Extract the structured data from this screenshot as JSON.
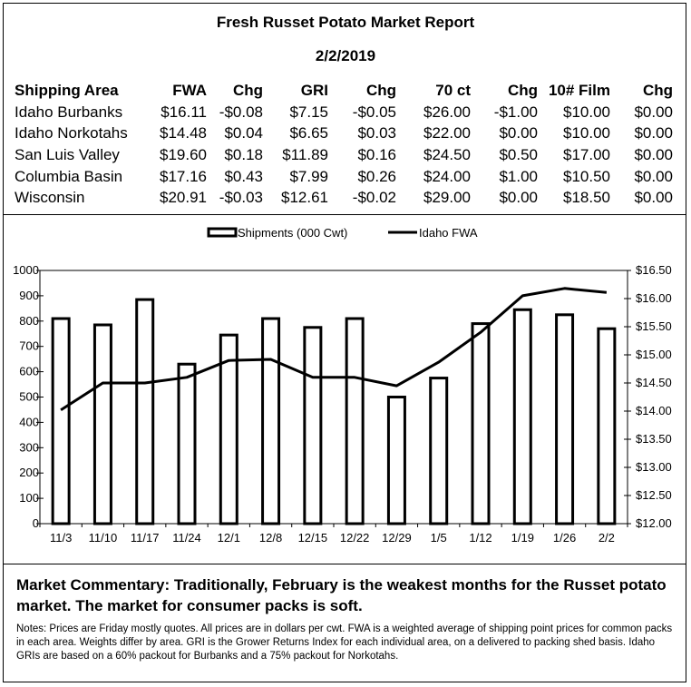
{
  "report": {
    "title": "Fresh Russet Potato Market Report",
    "date": "2/2/2019"
  },
  "price_table": {
    "headers": [
      "Shipping Area",
      "FWA",
      "Chg",
      "GRI",
      "Chg",
      "70 ct",
      "Chg",
      "10# Film",
      "Chg"
    ],
    "rows": [
      [
        "Idaho Burbanks",
        "$16.11",
        "-$0.08",
        "$7.15",
        "-$0.05",
        "$26.00",
        "-$1.00",
        "$10.00",
        "$0.00"
      ],
      [
        "Idaho Norkotahs",
        "$14.48",
        "$0.04",
        "$6.65",
        "$0.03",
        "$22.00",
        "$0.00",
        "$10.00",
        "$0.00"
      ],
      [
        "San Luis Valley",
        "$19.60",
        "$0.18",
        "$11.89",
        "$0.16",
        "$24.50",
        "$0.50",
        "$17.00",
        "$0.00"
      ],
      [
        "Columbia Basin",
        "$17.16",
        "$0.43",
        "$7.99",
        "$0.26",
        "$24.00",
        "$1.00",
        "$10.50",
        "$0.00"
      ],
      [
        "Wisconsin",
        "$20.91",
        "-$0.03",
        "$12.61",
        "-$0.02",
        "$29.00",
        "$0.00",
        "$18.50",
        "$0.00"
      ]
    ]
  },
  "chart_data": {
    "type": "bar",
    "categories": [
      "11/3",
      "11/10",
      "11/17",
      "11/24",
      "12/1",
      "12/8",
      "12/15",
      "12/22",
      "12/29",
      "1/5",
      "1/12",
      "1/19",
      "1/26",
      "2/2"
    ],
    "series": [
      {
        "name": "Shipments (000 Cwt)",
        "type": "bar",
        "axis": "left",
        "values": [
          810,
          785,
          885,
          630,
          745,
          810,
          775,
          810,
          500,
          575,
          790,
          845,
          825,
          770
        ]
      },
      {
        "name": "Idaho FWA",
        "type": "line",
        "axis": "right",
        "values": [
          14.02,
          14.5,
          14.5,
          14.6,
          14.9,
          14.92,
          14.6,
          14.6,
          14.45,
          14.87,
          15.4,
          16.05,
          16.18,
          16.11
        ]
      }
    ],
    "y_left": {
      "range": [
        0,
        1000
      ],
      "ticks": [
        "0",
        "100",
        "200",
        "300",
        "400",
        "500",
        "600",
        "700",
        "800",
        "900",
        "1000"
      ]
    },
    "y_right": {
      "range": [
        12.0,
        16.5
      ],
      "ticks": [
        "$12.00",
        "$12.50",
        "$13.00",
        "$13.50",
        "$14.00",
        "$14.50",
        "$15.00",
        "$15.50",
        "$16.00",
        "$16.50"
      ]
    },
    "legend_position": "top-center",
    "grid": false
  },
  "commentary": "Market Commentary: Traditionally, February is the weakest months for the Russet potato market. The market for consumer packs is soft.",
  "notes": "Notes: Prices are Friday mostly quotes. All prices are in dollars per cwt. FWA is a weighted average of shipping point prices for common packs in each area. Weights differ by area. GRI is the Grower Returns Index for each individual area, on a delivered to packing shed basis. Idaho GRIs are based on a 60% packout for Burbanks and a 75% packout for Norkotahs."
}
